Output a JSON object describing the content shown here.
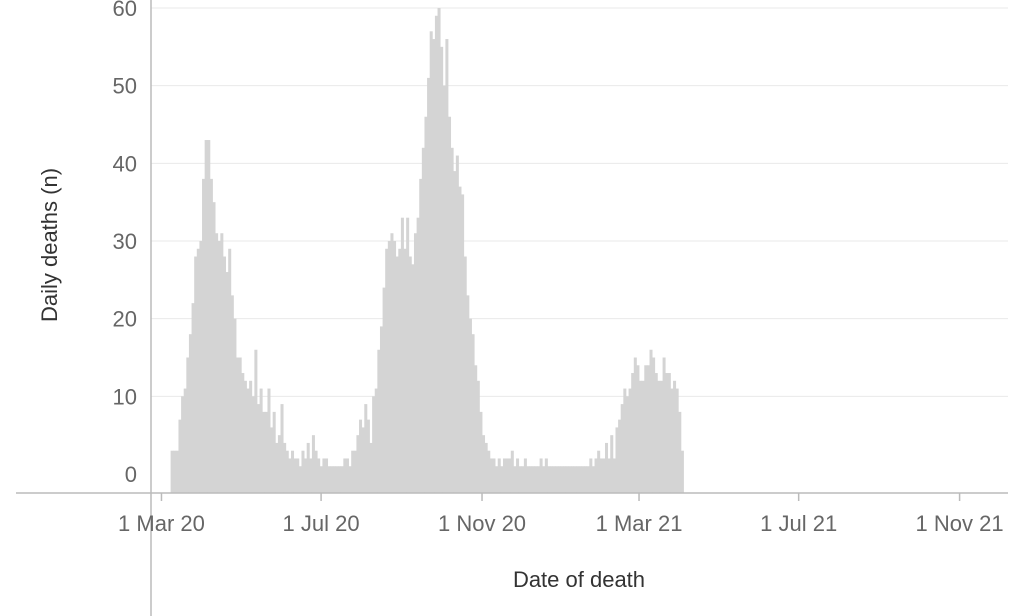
{
  "chart_data": {
    "type": "bar",
    "title": "",
    "xlabel": "Date of death",
    "ylabel": "Daily deaths (n)",
    "ylim": [
      0,
      60
    ],
    "xlim": [
      "2020-02-22",
      "2021-12-08"
    ],
    "grid": {
      "horizontal": true,
      "vertical": false
    },
    "bar_color": "#d4d4d4",
    "y_ticks": [
      {
        "value": 0,
        "label": "0"
      },
      {
        "value": 10,
        "label": "10"
      },
      {
        "value": 20,
        "label": "20"
      },
      {
        "value": 30,
        "label": "30"
      },
      {
        "value": 40,
        "label": "40"
      },
      {
        "value": 50,
        "label": "50"
      },
      {
        "value": 60,
        "label": "60"
      }
    ],
    "x_ticks": [
      {
        "date": "2020-03-01",
        "label": "1 Mar 20"
      },
      {
        "date": "2020-07-01",
        "label": "1 Jul 20"
      },
      {
        "date": "2020-11-01",
        "label": "1 Nov 20"
      },
      {
        "date": "2021-03-01",
        "label": "1 Mar 21"
      },
      {
        "date": "2021-07-01",
        "label": "1 Jul 21"
      },
      {
        "date": "2021-11-01",
        "label": "1 Nov 21"
      }
    ],
    "x_start": "2020-03-08",
    "x_step_days": 2,
    "values": [
      3,
      3,
      3,
      7,
      10,
      11,
      15,
      18,
      22,
      28,
      29,
      30,
      38,
      43,
      43,
      38,
      35,
      31,
      30,
      31,
      28,
      26,
      29,
      23,
      20,
      15,
      15,
      13,
      12,
      11,
      12,
      10,
      16,
      9,
      11,
      8,
      8,
      11,
      6,
      8,
      4,
      5,
      9,
      4,
      3,
      2,
      3,
      2,
      2,
      1,
      3,
      2,
      4,
      2,
      5,
      3,
      2,
      1,
      2,
      2,
      1,
      1,
      1,
      1,
      1,
      1,
      2,
      2,
      1,
      3,
      3,
      5,
      7,
      6,
      9,
      7,
      4,
      10,
      11,
      16,
      19,
      24,
      29,
      30,
      31,
      30,
      28,
      29,
      33,
      29,
      33,
      28,
      27,
      31,
      33,
      38,
      42,
      46,
      51,
      57,
      56,
      59,
      60,
      55,
      50,
      56,
      46,
      42,
      39,
      41,
      37,
      36,
      28,
      23,
      20,
      18,
      14,
      12,
      8,
      5,
      4,
      3,
      2,
      2,
      1,
      2,
      1,
      2,
      2,
      2,
      3,
      1,
      2,
      1,
      1,
      2,
      1,
      1,
      1,
      1,
      1,
      2,
      1,
      2,
      1,
      1,
      1,
      1,
      1,
      1,
      1,
      1,
      1,
      1,
      1,
      1,
      1,
      1,
      1,
      1,
      2,
      1,
      2,
      3,
      2,
      2,
      4,
      2,
      5,
      2,
      6,
      7,
      9,
      11,
      10,
      11,
      13,
      15,
      14,
      12,
      12,
      14,
      14,
      16,
      15,
      13,
      12,
      12,
      15,
      13,
      13,
      11,
      12,
      11,
      8,
      3
    ]
  }
}
